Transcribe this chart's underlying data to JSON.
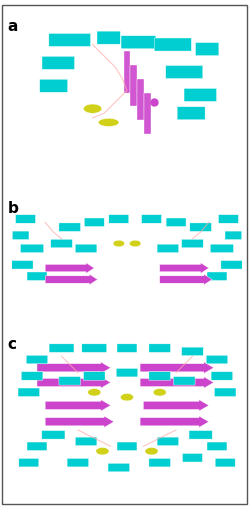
{
  "figure_width": 2.49,
  "figure_height": 5.09,
  "dpi": 100,
  "background_color": "#ffffff",
  "border_color": "#404040",
  "border_linewidth": 1.5,
  "labels": [
    "a",
    "b",
    "c"
  ],
  "label_fontsize": 14,
  "label_fontweight": "bold",
  "helix_color": "#00ced1",
  "sheet_color": "#cc44cc",
  "cofactor_color": "#cccc00",
  "loop_color": "#ffaaaa",
  "outer_border_color": "#555555",
  "outer_border_lw": 1.0
}
